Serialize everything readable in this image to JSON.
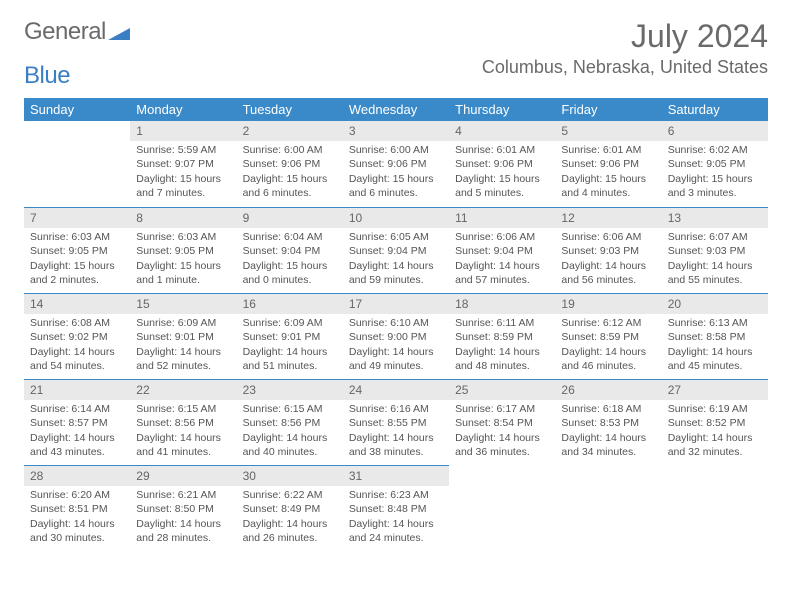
{
  "logo": {
    "part1": "General",
    "part2": "Blue"
  },
  "title": "July 2024",
  "location": "Columbus, Nebraska, United States",
  "colors": {
    "header_bg": "#3a89c9",
    "header_text": "#ffffff",
    "daynum_bg": "#e9e9e9",
    "border": "#3a89c9",
    "text": "#555555"
  },
  "day_labels": [
    "Sunday",
    "Monday",
    "Tuesday",
    "Wednesday",
    "Thursday",
    "Friday",
    "Saturday"
  ],
  "weeks": [
    [
      {
        "n": "",
        "sr": "",
        "ss": "",
        "dl": ""
      },
      {
        "n": "1",
        "sr": "Sunrise: 5:59 AM",
        "ss": "Sunset: 9:07 PM",
        "dl": "Daylight: 15 hours and 7 minutes."
      },
      {
        "n": "2",
        "sr": "Sunrise: 6:00 AM",
        "ss": "Sunset: 9:06 PM",
        "dl": "Daylight: 15 hours and 6 minutes."
      },
      {
        "n": "3",
        "sr": "Sunrise: 6:00 AM",
        "ss": "Sunset: 9:06 PM",
        "dl": "Daylight: 15 hours and 6 minutes."
      },
      {
        "n": "4",
        "sr": "Sunrise: 6:01 AM",
        "ss": "Sunset: 9:06 PM",
        "dl": "Daylight: 15 hours and 5 minutes."
      },
      {
        "n": "5",
        "sr": "Sunrise: 6:01 AM",
        "ss": "Sunset: 9:06 PM",
        "dl": "Daylight: 15 hours and 4 minutes."
      },
      {
        "n": "6",
        "sr": "Sunrise: 6:02 AM",
        "ss": "Sunset: 9:05 PM",
        "dl": "Daylight: 15 hours and 3 minutes."
      }
    ],
    [
      {
        "n": "7",
        "sr": "Sunrise: 6:03 AM",
        "ss": "Sunset: 9:05 PM",
        "dl": "Daylight: 15 hours and 2 minutes."
      },
      {
        "n": "8",
        "sr": "Sunrise: 6:03 AM",
        "ss": "Sunset: 9:05 PM",
        "dl": "Daylight: 15 hours and 1 minute."
      },
      {
        "n": "9",
        "sr": "Sunrise: 6:04 AM",
        "ss": "Sunset: 9:04 PM",
        "dl": "Daylight: 15 hours and 0 minutes."
      },
      {
        "n": "10",
        "sr": "Sunrise: 6:05 AM",
        "ss": "Sunset: 9:04 PM",
        "dl": "Daylight: 14 hours and 59 minutes."
      },
      {
        "n": "11",
        "sr": "Sunrise: 6:06 AM",
        "ss": "Sunset: 9:04 PM",
        "dl": "Daylight: 14 hours and 57 minutes."
      },
      {
        "n": "12",
        "sr": "Sunrise: 6:06 AM",
        "ss": "Sunset: 9:03 PM",
        "dl": "Daylight: 14 hours and 56 minutes."
      },
      {
        "n": "13",
        "sr": "Sunrise: 6:07 AM",
        "ss": "Sunset: 9:03 PM",
        "dl": "Daylight: 14 hours and 55 minutes."
      }
    ],
    [
      {
        "n": "14",
        "sr": "Sunrise: 6:08 AM",
        "ss": "Sunset: 9:02 PM",
        "dl": "Daylight: 14 hours and 54 minutes."
      },
      {
        "n": "15",
        "sr": "Sunrise: 6:09 AM",
        "ss": "Sunset: 9:01 PM",
        "dl": "Daylight: 14 hours and 52 minutes."
      },
      {
        "n": "16",
        "sr": "Sunrise: 6:09 AM",
        "ss": "Sunset: 9:01 PM",
        "dl": "Daylight: 14 hours and 51 minutes."
      },
      {
        "n": "17",
        "sr": "Sunrise: 6:10 AM",
        "ss": "Sunset: 9:00 PM",
        "dl": "Daylight: 14 hours and 49 minutes."
      },
      {
        "n": "18",
        "sr": "Sunrise: 6:11 AM",
        "ss": "Sunset: 8:59 PM",
        "dl": "Daylight: 14 hours and 48 minutes."
      },
      {
        "n": "19",
        "sr": "Sunrise: 6:12 AM",
        "ss": "Sunset: 8:59 PM",
        "dl": "Daylight: 14 hours and 46 minutes."
      },
      {
        "n": "20",
        "sr": "Sunrise: 6:13 AM",
        "ss": "Sunset: 8:58 PM",
        "dl": "Daylight: 14 hours and 45 minutes."
      }
    ],
    [
      {
        "n": "21",
        "sr": "Sunrise: 6:14 AM",
        "ss": "Sunset: 8:57 PM",
        "dl": "Daylight: 14 hours and 43 minutes."
      },
      {
        "n": "22",
        "sr": "Sunrise: 6:15 AM",
        "ss": "Sunset: 8:56 PM",
        "dl": "Daylight: 14 hours and 41 minutes."
      },
      {
        "n": "23",
        "sr": "Sunrise: 6:15 AM",
        "ss": "Sunset: 8:56 PM",
        "dl": "Daylight: 14 hours and 40 minutes."
      },
      {
        "n": "24",
        "sr": "Sunrise: 6:16 AM",
        "ss": "Sunset: 8:55 PM",
        "dl": "Daylight: 14 hours and 38 minutes."
      },
      {
        "n": "25",
        "sr": "Sunrise: 6:17 AM",
        "ss": "Sunset: 8:54 PM",
        "dl": "Daylight: 14 hours and 36 minutes."
      },
      {
        "n": "26",
        "sr": "Sunrise: 6:18 AM",
        "ss": "Sunset: 8:53 PM",
        "dl": "Daylight: 14 hours and 34 minutes."
      },
      {
        "n": "27",
        "sr": "Sunrise: 6:19 AM",
        "ss": "Sunset: 8:52 PM",
        "dl": "Daylight: 14 hours and 32 minutes."
      }
    ],
    [
      {
        "n": "28",
        "sr": "Sunrise: 6:20 AM",
        "ss": "Sunset: 8:51 PM",
        "dl": "Daylight: 14 hours and 30 minutes."
      },
      {
        "n": "29",
        "sr": "Sunrise: 6:21 AM",
        "ss": "Sunset: 8:50 PM",
        "dl": "Daylight: 14 hours and 28 minutes."
      },
      {
        "n": "30",
        "sr": "Sunrise: 6:22 AM",
        "ss": "Sunset: 8:49 PM",
        "dl": "Daylight: 14 hours and 26 minutes."
      },
      {
        "n": "31",
        "sr": "Sunrise: 6:23 AM",
        "ss": "Sunset: 8:48 PM",
        "dl": "Daylight: 14 hours and 24 minutes."
      },
      {
        "n": "",
        "sr": "",
        "ss": "",
        "dl": ""
      },
      {
        "n": "",
        "sr": "",
        "ss": "",
        "dl": ""
      },
      {
        "n": "",
        "sr": "",
        "ss": "",
        "dl": ""
      }
    ]
  ]
}
